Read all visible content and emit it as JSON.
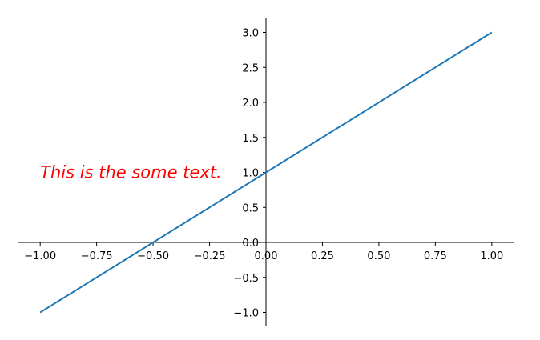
{
  "chart_data": {
    "type": "line",
    "title": "",
    "xlabel": "",
    "ylabel": "",
    "xlim": [
      -1.1,
      1.1
    ],
    "ylim": [
      -1.2,
      3.2
    ],
    "spines": "centered-at-origin",
    "grid": false,
    "legend": "none",
    "x_ticks": [
      -1.0,
      -0.75,
      -0.5,
      -0.25,
      0.0,
      0.25,
      0.5,
      0.75,
      1.0
    ],
    "x_tick_labels": [
      "−1.00",
      "−0.75",
      "−0.50",
      "−0.25",
      "0.00",
      "0.25",
      "0.50",
      "0.75",
      "1.00"
    ],
    "y_ticks": [
      -1.0,
      -0.5,
      0.0,
      0.5,
      1.0,
      1.5,
      2.0,
      2.5,
      3.0
    ],
    "y_tick_labels": [
      "−1.0",
      "−0.5",
      "0.0",
      "0.5",
      "1.0",
      "1.5",
      "2.0",
      "2.5",
      "3.0"
    ],
    "series": [
      {
        "x": [
          -1.0,
          1.0
        ],
        "y": [
          -1.0,
          3.0
        ],
        "color": "#1f77b4"
      }
    ],
    "annotations": [
      {
        "text": "This is the some text.",
        "x": -1.0,
        "y": 1.0,
        "color": "#ff0000"
      }
    ]
  }
}
